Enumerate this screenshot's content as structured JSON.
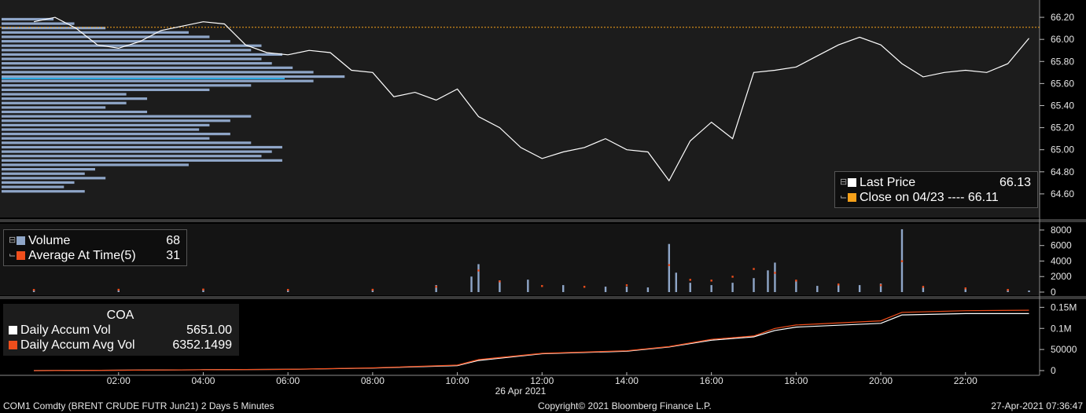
{
  "footer": {
    "left": "COM1 Comdty (BRENT CRUDE FUTR  Jun21) 2 Days 5 Minutes",
    "center": "Copyright© 2021 Bloomberg Finance L.P.",
    "right": "27-Apr-2021 07:36:47"
  },
  "price_legend": {
    "last_label": "Last Price",
    "last_value": "66.13",
    "close_label": "Close on 04/23 ---- 66.11",
    "close_value": "66.11",
    "last_color": "#ffffff",
    "close_color": "#f7a11a"
  },
  "volume_legend": {
    "vol_label": "Volume",
    "vol_value": "68",
    "avg_label": "Average At Time(5)",
    "avg_value": "31",
    "vol_color": "#8fa6c8",
    "avg_color": "#f04e1c"
  },
  "coa_legend": {
    "title": "COA",
    "vol_label": "Daily Accum Vol",
    "vol_value": "5651.00",
    "avg_label": "Daily Accum Avg Vol",
    "avg_value": "6352.1499"
  },
  "x_axis": {
    "date_label": "26 Apr 2021",
    "ticks": [
      "02:00",
      "04:00",
      "06:00",
      "08:00",
      "10:00",
      "12:00",
      "14:00",
      "16:00",
      "18:00",
      "20:00",
      "22:00"
    ]
  },
  "chart_data": [
    {
      "type": "line",
      "name": "price",
      "ylim": [
        64.45,
        66.3
      ],
      "yticks": [
        "66.20",
        "66.00",
        "65.80",
        "65.60",
        "65.40",
        "65.20",
        "65.00",
        "64.80",
        "64.60"
      ],
      "close_reference": 66.11,
      "series": [
        {
          "name": "Last Price",
          "x": [
            "00:00",
            "00:30",
            "01:00",
            "01:30",
            "02:00",
            "02:30",
            "03:00",
            "03:30",
            "04:00",
            "04:30",
            "05:00",
            "05:30",
            "06:00",
            "06:30",
            "07:00",
            "07:30",
            "08:00",
            "08:30",
            "09:00",
            "09:30",
            "10:00",
            "10:30",
            "11:00",
            "11:30",
            "12:00",
            "12:30",
            "13:00",
            "13:30",
            "14:00",
            "14:30",
            "15:00",
            "15:30",
            "16:00",
            "16:30",
            "17:00",
            "17:30",
            "18:00",
            "18:30",
            "19:00",
            "19:30",
            "20:00",
            "20:30",
            "21:00",
            "21:30",
            "22:00",
            "22:30",
            "23:00",
            "23:30"
          ],
          "values": [
            66.16,
            66.2,
            66.1,
            65.95,
            65.92,
            65.98,
            66.08,
            66.12,
            66.16,
            66.14,
            65.95,
            65.88,
            65.86,
            65.9,
            65.88,
            65.72,
            65.7,
            65.48,
            65.52,
            65.45,
            65.55,
            65.3,
            65.2,
            65.02,
            64.92,
            64.98,
            65.02,
            65.1,
            65.0,
            64.98,
            64.72,
            65.08,
            65.25,
            65.1,
            65.7,
            65.72,
            65.75,
            65.85,
            65.95,
            66.02,
            65.95,
            65.78,
            65.66,
            65.7,
            65.72,
            65.7,
            65.78,
            66.01
          ]
        }
      ],
      "volume_profile": {
        "price_levels": [
          66.18,
          66.14,
          66.1,
          66.06,
          66.02,
          65.98,
          65.94,
          65.9,
          65.86,
          65.82,
          65.78,
          65.74,
          65.7,
          65.66,
          65.62,
          65.58,
          65.54,
          65.5,
          65.46,
          65.42,
          65.38,
          65.34,
          65.3,
          65.26,
          65.22,
          65.18,
          65.14,
          65.1,
          65.06,
          65.02,
          64.98,
          64.94,
          64.9,
          64.86,
          64.82,
          64.78,
          64.74,
          64.7,
          64.66,
          64.62
        ],
        "relative_volume": [
          0.05,
          0.07,
          0.1,
          0.18,
          0.2,
          0.22,
          0.25,
          0.24,
          0.27,
          0.25,
          0.26,
          0.28,
          0.3,
          0.33,
          0.3,
          0.24,
          0.2,
          0.12,
          0.14,
          0.12,
          0.1,
          0.14,
          0.24,
          0.22,
          0.2,
          0.19,
          0.22,
          0.2,
          0.24,
          0.27,
          0.26,
          0.25,
          0.27,
          0.18,
          0.09,
          0.08,
          0.1,
          0.07,
          0.06,
          0.08
        ],
        "poc_price": 65.645
      }
    },
    {
      "type": "bar",
      "name": "volume",
      "ylim": [
        0,
        8500
      ],
      "yticks": [
        "8000",
        "6000",
        "4000",
        "2000",
        "0"
      ],
      "series": [
        {
          "name": "Volume",
          "x": [
            "00:00",
            "02:00",
            "04:00",
            "06:00",
            "08:00",
            "09:30",
            "10:20",
            "10:30",
            "11:00",
            "11:40",
            "12:30",
            "13:30",
            "14:00",
            "14:30",
            "15:00",
            "15:10",
            "15:30",
            "16:00",
            "16:30",
            "17:00",
            "17:20",
            "17:30",
            "18:00",
            "18:30",
            "19:00",
            "19:30",
            "20:00",
            "20:30",
            "21:00",
            "22:00",
            "23:00",
            "23:30"
          ],
          "values": [
            300,
            350,
            400,
            300,
            350,
            900,
            2000,
            3600,
            1500,
            1600,
            900,
            700,
            700,
            600,
            6200,
            2500,
            1200,
            900,
            1200,
            1800,
            2800,
            3800,
            1500,
            800,
            1000,
            900,
            1100,
            8100,
            600,
            400,
            300,
            200
          ]
        },
        {
          "name": "Average At Time(5)",
          "x": [
            "00:00",
            "02:00",
            "04:00",
            "06:00",
            "08:00",
            "09:30",
            "10:30",
            "11:00",
            "12:00",
            "13:00",
            "14:00",
            "15:00",
            "15:30",
            "16:00",
            "16:30",
            "17:00",
            "17:30",
            "18:00",
            "19:00",
            "20:00",
            "20:30",
            "21:00",
            "22:00",
            "23:00"
          ],
          "values": [
            300,
            320,
            350,
            300,
            320,
            700,
            2800,
            1400,
            800,
            700,
            900,
            3500,
            1600,
            1500,
            2000,
            3000,
            2500,
            1500,
            1000,
            900,
            4000,
            700,
            500,
            300
          ]
        }
      ]
    },
    {
      "type": "line",
      "name": "cumulative volume",
      "ylim": [
        0,
        160000
      ],
      "yticks": [
        "0.15M",
        "0.1M",
        "50000",
        "0"
      ],
      "series": [
        {
          "name": "Daily Accum Vol",
          "x": [
            "00:00",
            "02:00",
            "04:00",
            "06:00",
            "08:00",
            "10:00",
            "10:30",
            "12:00",
            "14:00",
            "15:00",
            "16:00",
            "17:00",
            "17:30",
            "18:00",
            "20:00",
            "20:30",
            "22:00",
            "23:30"
          ],
          "values": [
            0,
            1000,
            2000,
            3000,
            6000,
            12000,
            24000,
            40000,
            46000,
            56000,
            72000,
            80000,
            95000,
            103000,
            112000,
            132000,
            135000,
            135000
          ]
        },
        {
          "name": "Daily Accum Avg Vol",
          "x": [
            "00:00",
            "02:00",
            "04:00",
            "06:00",
            "08:00",
            "10:00",
            "10:30",
            "12:00",
            "14:00",
            "15:00",
            "16:00",
            "17:00",
            "17:30",
            "18:00",
            "20:00",
            "20:30",
            "22:00",
            "23:30"
          ],
          "values": [
            0,
            1000,
            2000,
            3000,
            6500,
            13000,
            26000,
            41000,
            47000,
            57000,
            74000,
            82000,
            100000,
            108000,
            118000,
            138000,
            142000,
            143000
          ]
        }
      ]
    }
  ]
}
